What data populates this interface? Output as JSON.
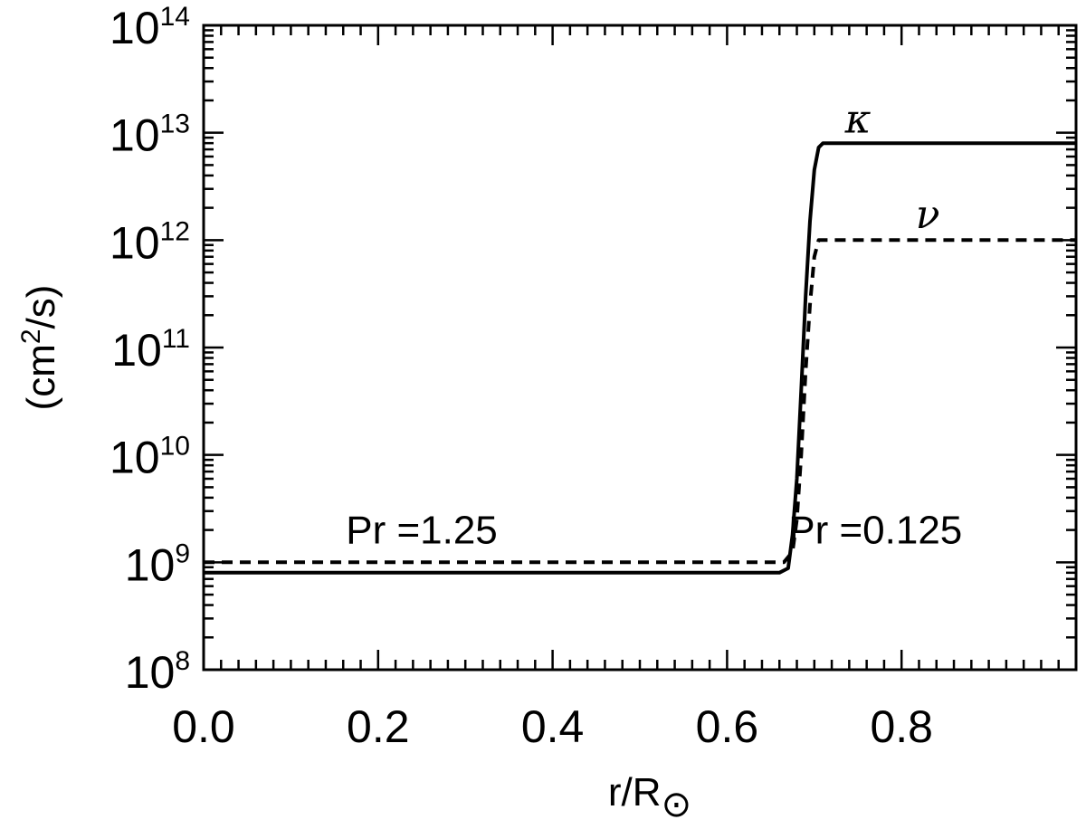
{
  "chart_data": {
    "type": "line",
    "title": "",
    "xlabel": "r/R",
    "xlabel_sub": "⊙",
    "ylabel_parts": [
      "(cm",
      "2",
      "/s)"
    ],
    "xlim": [
      0.0,
      1.0
    ],
    "ylim": [
      100000000,
      100000000000000
    ],
    "yscale": "log",
    "grid": false,
    "xticks": [
      0.0,
      0.2,
      0.4,
      0.6,
      0.8
    ],
    "xtick_labels": [
      "0.0",
      "0.2",
      "0.4",
      "0.6",
      "0.8"
    ],
    "yticks": [
      {
        "base": "10",
        "exp": "8",
        "value": 100000000
      },
      {
        "base": "10",
        "exp": "9",
        "value": 1000000000
      },
      {
        "base": "10",
        "exp": "10",
        "value": 10000000000
      },
      {
        "base": "10",
        "exp": "11",
        "value": 100000000000
      },
      {
        "base": "10",
        "exp": "12",
        "value": 1000000000000
      },
      {
        "base": "10",
        "exp": "13",
        "value": 10000000000000
      },
      {
        "base": "10",
        "exp": "14",
        "value": 100000000000000
      }
    ],
    "series": [
      {
        "name": "κ",
        "style": "solid",
        "color": "#000000",
        "x": [
          0.0,
          0.3,
          0.66,
          0.67,
          0.675,
          0.68,
          0.685,
          0.69,
          0.695,
          0.7,
          0.705,
          0.71,
          0.75,
          0.85,
          1.0
        ],
        "y": [
          800000000,
          800000000,
          800000000,
          880000000,
          1800000000,
          6000000000,
          40000000000,
          300000000000,
          1500000000000,
          4500000000000,
          7300000000000,
          8000000000000,
          8000000000000,
          8000000000000,
          8000000000000
        ]
      },
      {
        "name": "ν",
        "style": "dashed",
        "color": "#000000",
        "x": [
          0.0,
          0.3,
          0.665,
          0.675,
          0.68,
          0.685,
          0.69,
          0.695,
          0.7,
          0.705,
          0.71,
          0.75,
          0.85,
          1.0
        ],
        "y": [
          1000000000,
          1000000000,
          1000000000,
          1250000000,
          2500000000,
          10000000000,
          60000000000,
          250000000000,
          700000000000,
          1000000000000,
          1000000000000,
          1000000000000,
          1000000000000,
          1000000000000
        ]
      }
    ],
    "annotations": [
      {
        "text": "Pr =1.25",
        "x": 0.25,
        "y": 1500000000
      },
      {
        "text": "Pr =0.125",
        "x": 0.77,
        "y": 1500000000
      }
    ],
    "series_labels": [
      {
        "text": "κ",
        "x": 0.75,
        "y": 10000000000000
      },
      {
        "text": "ν",
        "x": 0.83,
        "y": 1300000000000
      }
    ]
  }
}
